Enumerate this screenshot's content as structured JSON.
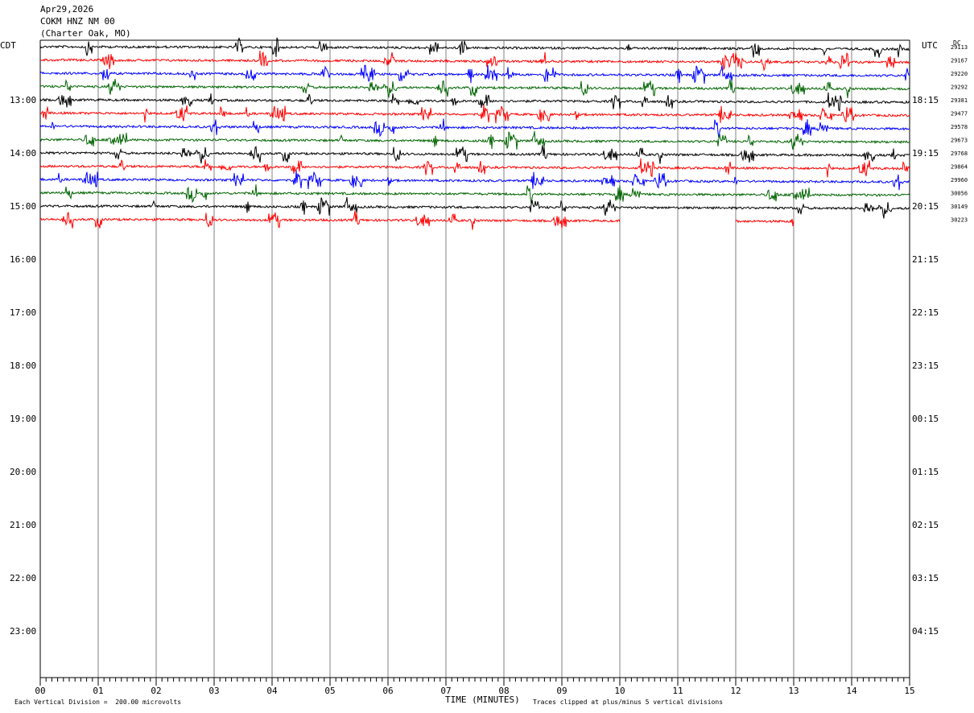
{
  "header": {
    "date": "Apr29,2026",
    "station": "COKM HNZ NM 00",
    "location": "(Charter Oak, MO)"
  },
  "labels": {
    "left_tz": "CDT",
    "right_tz": "UTC",
    "dc_label": "DC",
    "x_title": "TIME (MINUTES)",
    "vertical_division": "Each Vertical Division =  200.00 microvolts",
    "clip_note": "Traces clipped at plus/minus 5 vertical divisions"
  },
  "colors": {
    "trace_cycle": [
      "#000000",
      "#ff0000",
      "#0000ff",
      "#006400"
    ],
    "grid": "#808080"
  },
  "chart_data": {
    "type": "line",
    "title": "",
    "xlabel": "TIME (MINUTES)",
    "xlim": [
      0,
      15
    ],
    "x_ticks": [
      "00",
      "01",
      "02",
      "03",
      "04",
      "05",
      "06",
      "07",
      "08",
      "09",
      "10",
      "11",
      "12",
      "13",
      "14",
      "15"
    ],
    "left_hour_labels": [
      "13:00",
      "14:00",
      "15:00",
      "16:00",
      "17:00",
      "18:00",
      "19:00",
      "20:00",
      "21:00",
      "22:00",
      "23:00"
    ],
    "right_hour_labels": [
      "18:15",
      "19:15",
      "20:15",
      "21:15",
      "22:15",
      "23:15",
      "00:15",
      "01:15",
      "02:15",
      "03:15",
      "04:15"
    ],
    "series": [
      {
        "dc": "29113",
        "end_minute": 15
      },
      {
        "dc": "29167",
        "end_minute": 15
      },
      {
        "dc": "29220",
        "end_minute": 15
      },
      {
        "dc": "29292",
        "end_minute": 15
      },
      {
        "dc": "29381",
        "end_minute": 15
      },
      {
        "dc": "29477",
        "end_minute": 15
      },
      {
        "dc": "29578",
        "end_minute": 15
      },
      {
        "dc": "29673",
        "end_minute": 15
      },
      {
        "dc": "29768",
        "end_minute": 15
      },
      {
        "dc": "29864",
        "end_minute": 15
      },
      {
        "dc": "29960",
        "end_minute": 15
      },
      {
        "dc": "30056",
        "end_minute": 15
      },
      {
        "dc": "30149",
        "end_minute": 15
      },
      {
        "dc": "30223",
        "end_minute": 13
      }
    ],
    "gap": {
      "trace": 13,
      "from_minute": 10,
      "to_minute": 12
    }
  }
}
